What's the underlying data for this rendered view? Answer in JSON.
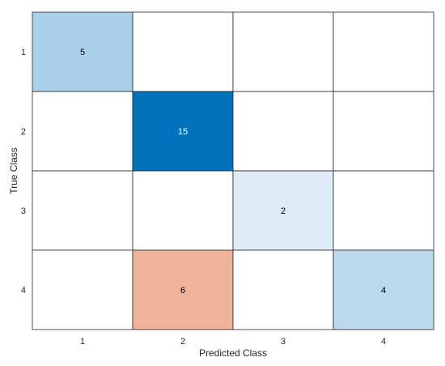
{
  "chart_data": {
    "type": "heatmap",
    "xlabel": "Predicted Class",
    "ylabel": "True Class",
    "classes": [
      "1",
      "2",
      "3",
      "4"
    ],
    "matrix": [
      [
        5,
        0,
        0,
        0
      ],
      [
        0,
        15,
        0,
        0
      ],
      [
        0,
        0,
        2,
        0
      ],
      [
        0,
        6,
        0,
        4
      ]
    ],
    "correct_color": "#0072bd",
    "error_color": "#d95319",
    "text_light": "#ffffff",
    "text_dark": "#000000",
    "grid_color": "#262626"
  }
}
